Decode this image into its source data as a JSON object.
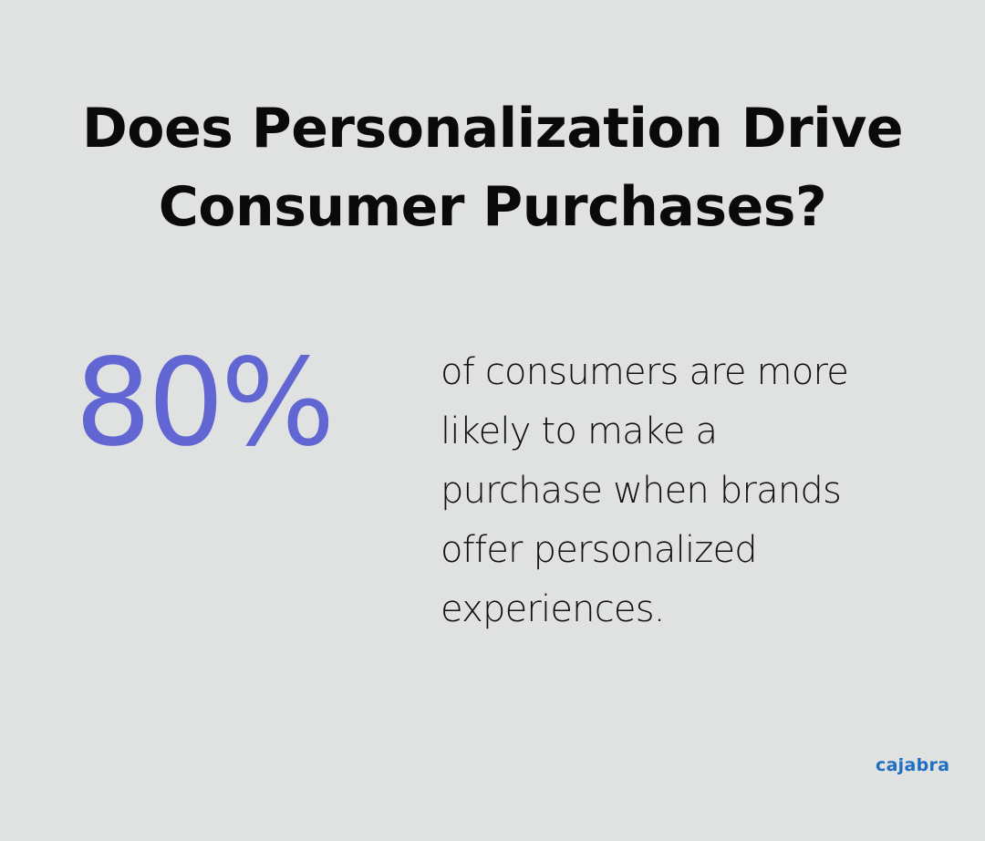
{
  "title": {
    "line1": "Does Personalization Drive",
    "line2": "Consumer Purchases?"
  },
  "stat": {
    "value": "80%",
    "color": "#6166d2"
  },
  "description": {
    "lines": [
      "of consumers are more",
      "likely to make a",
      "purchase when brands",
      "offer personalized",
      "experiences."
    ]
  },
  "brand": {
    "logo_text": "cajabra",
    "color": "#1e6fc4"
  },
  "background_color": "#e0e2e1"
}
